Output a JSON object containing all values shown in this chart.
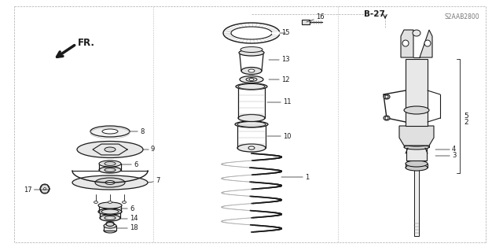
{
  "bg_color": "#ffffff",
  "line_color": "#1a1a1a",
  "gray_color": "#777777",
  "mid_gray": "#aaaaaa",
  "fill_gray": "#e8e8e8",
  "border_color": "#999999",
  "page_ref": "B-27",
  "part_num": "S2AAB2800",
  "fr_label": "FR."
}
